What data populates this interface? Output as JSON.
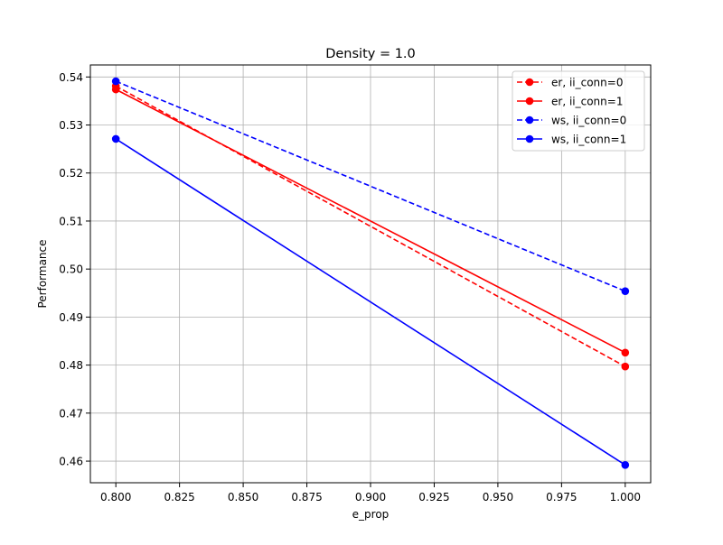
{
  "chart_data": {
    "type": "line",
    "title": "Density = 1.0",
    "xlabel": "e_prop",
    "ylabel": "Performance",
    "xlim": [
      0.79,
      1.01
    ],
    "ylim": [
      0.4555,
      0.5425
    ],
    "x_ticks": [
      0.8,
      0.825,
      0.85,
      0.875,
      0.9,
      0.925,
      0.95,
      0.975,
      1.0
    ],
    "x_tick_labels": [
      "0.800",
      "0.825",
      "0.850",
      "0.875",
      "0.900",
      "0.925",
      "0.950",
      "0.975",
      "1.000"
    ],
    "y_ticks": [
      0.46,
      0.47,
      0.48,
      0.49,
      0.5,
      0.51,
      0.52,
      0.53,
      0.54
    ],
    "y_tick_labels": [
      "0.46",
      "0.47",
      "0.48",
      "0.49",
      "0.50",
      "0.51",
      "0.52",
      "0.53",
      "0.54"
    ],
    "grid": true,
    "legend_position": "top-right",
    "series": [
      {
        "name": "er, ii_conn=0",
        "color": "#ff0000",
        "linestyle": "dashed",
        "marker": "circle",
        "x": [
          0.8,
          1.0
        ],
        "y": [
          0.5381,
          0.4797
        ]
      },
      {
        "name": "er, ii_conn=1",
        "color": "#ff0000",
        "linestyle": "solid",
        "marker": "circle",
        "x": [
          0.8,
          1.0
        ],
        "y": [
          0.5374,
          0.4826
        ]
      },
      {
        "name": "ws, ii_conn=0",
        "color": "#0000ff",
        "linestyle": "dashed",
        "marker": "circle",
        "x": [
          0.8,
          1.0
        ],
        "y": [
          0.5391,
          0.4954
        ]
      },
      {
        "name": "ws, ii_conn=1",
        "color": "#0000ff",
        "linestyle": "solid",
        "marker": "circle",
        "x": [
          0.8,
          1.0
        ],
        "y": [
          0.5271,
          0.4592
        ]
      }
    ]
  }
}
